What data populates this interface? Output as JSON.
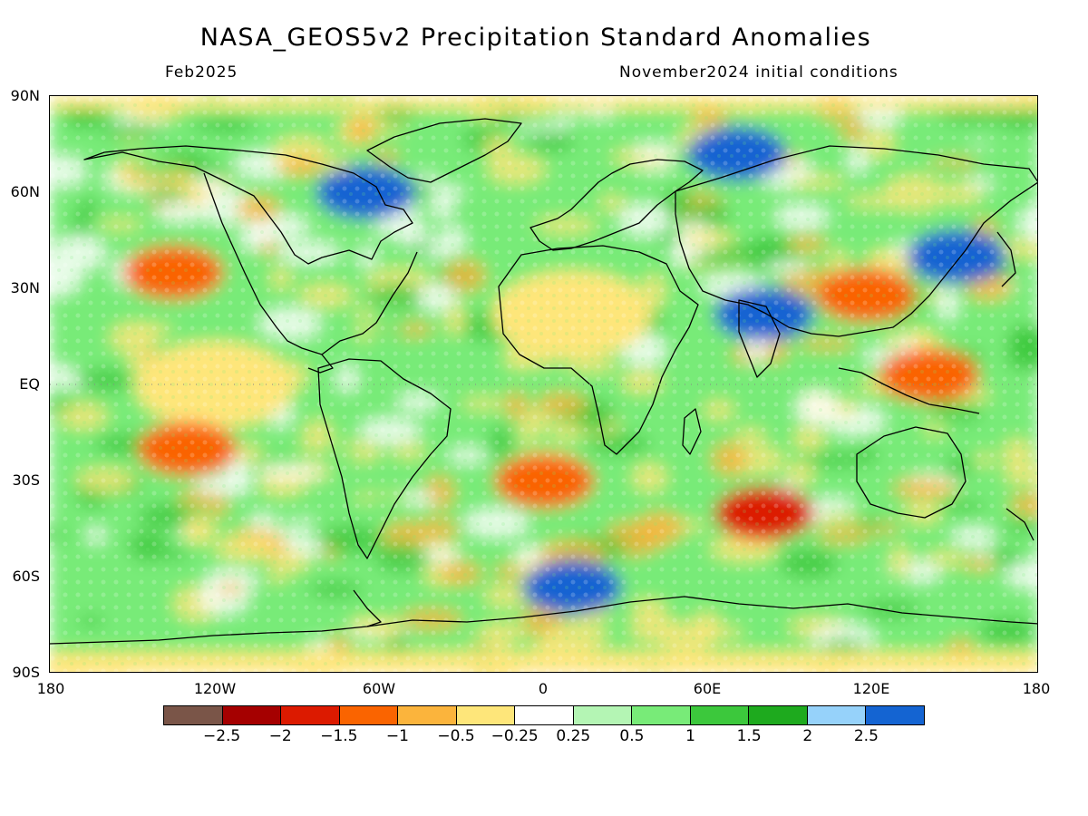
{
  "title": "NASA_GEOS5v2 Precipitation Standard Anomalies",
  "subtitle_left": "Feb2025",
  "subtitle_right": "November2024 initial conditions",
  "map": {
    "lat_ticks": [
      "90N",
      "60N",
      "30N",
      "EQ",
      "30S",
      "60S",
      "90S"
    ],
    "lon_ticks": [
      "180",
      "120W",
      "60W",
      "0",
      "60E",
      "120E",
      "180"
    ],
    "colorbar": {
      "colors": [
        "#7a5548",
        "#a50000",
        "#dc1a00",
        "#fa6400",
        "#fbb43c",
        "#fee67a",
        "#ffffff",
        "#b4f5b4",
        "#78eb78",
        "#3cc83c",
        "#1eaa1e",
        "#96d2fa",
        "#1464d2"
      ],
      "labels": [
        "-2.5",
        "-2",
        "-1.5",
        "-1",
        "-0.5",
        "-0.25",
        "0.25",
        "0.5",
        "1",
        "1.5",
        "2",
        "2.5"
      ]
    },
    "anomalies": [
      {
        "region": "North Atlantic / NE Canada",
        "lon": -65,
        "lat": 60,
        "value": 2.5
      },
      {
        "region": "Arctic Siberia",
        "lon": 70,
        "lat": 72,
        "value": 2.5
      },
      {
        "region": "NE Pacific",
        "lon": -135,
        "lat": 35,
        "value": -1.5
      },
      {
        "region": "Equatorial East Pacific",
        "lon": -120,
        "lat": 0,
        "value": -0.5
      },
      {
        "region": "South Pacific",
        "lon": -130,
        "lat": -20,
        "value": -1.5
      },
      {
        "region": "South Atlantic",
        "lon": 0,
        "lat": -30,
        "value": -1.5
      },
      {
        "region": "South Indian Ocean",
        "lon": 80,
        "lat": -40,
        "value": -2
      },
      {
        "region": "Western Pacific / Maritime Continent",
        "lon": 140,
        "lat": 3,
        "value": -1.5
      },
      {
        "region": "Southern Ocean Atlantic",
        "lon": 10,
        "lat": -63,
        "value": 2.5
      },
      {
        "region": "India",
        "lon": 80,
        "lat": 22,
        "value": 2.5
      },
      {
        "region": "East China",
        "lon": 117,
        "lat": 28,
        "value": -1.5
      },
      {
        "region": "Sahara",
        "lon": 10,
        "lat": 22,
        "value": -0.5
      },
      {
        "region": "NE Asia",
        "lon": 150,
        "lat": 40,
        "value": 2.5
      }
    ]
  }
}
